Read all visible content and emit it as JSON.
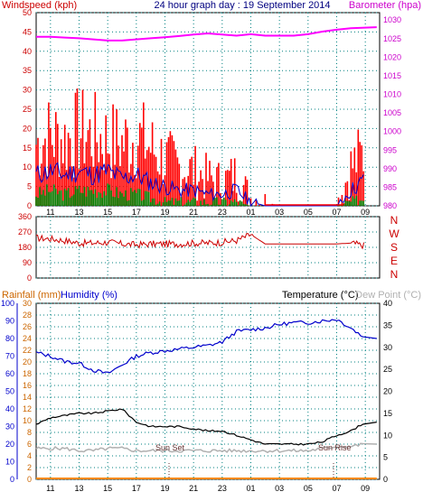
{
  "colors": {
    "wind": "#ff0000",
    "wind_avg": "#0000cc",
    "wind_low": "#008000",
    "baro": "#ff00ff",
    "direction": "#cc0000",
    "direction_labels": "#cc0000",
    "humidity": "#0000cc",
    "temperature": "#000000",
    "dewpoint": "#b0b0b0",
    "rainfall": "#ff8800",
    "grid": "#008080",
    "axis_left_top": "#cc0000",
    "axis_right_top": "#cc00cc",
    "axis_humidity": "#0000cc",
    "axis_rain": "#cc6600",
    "axis_temp": "#000000"
  },
  "header": {
    "left_title": "Windspeed (kph)",
    "center_title": "24 hour graph day : 19 September 2014",
    "right_title": "Barometer (hpa)"
  },
  "middle": {
    "direction_labels": [
      "N",
      "W",
      "S",
      "E",
      "N"
    ]
  },
  "bottom_header": {
    "rain_title": "Rainfall (mm)",
    "humidity_title": "Humidity (%)",
    "temp_title": "Temperature (°C)",
    "dew_title": "Dew Point (°C)"
  },
  "annotations": {
    "sunset": "Sun Set",
    "sunrise": "Sun Rise"
  },
  "chart_data": [
    {
      "type": "line",
      "panel": "wind_baro",
      "x_labels": [
        "11",
        "13",
        "15",
        "17",
        "19",
        "21",
        "23",
        "01",
        "03",
        "05",
        "07",
        "09"
      ],
      "y_left_ticks": [
        0,
        5,
        10,
        15,
        20,
        25,
        30,
        35,
        40,
        45,
        50
      ],
      "y_right_ticks": [
        980,
        985,
        990,
        995,
        1000,
        1005,
        1010,
        1015,
        1020,
        1025,
        1030
      ],
      "ylim_left": [
        0,
        50
      ],
      "ylim_right": [
        980,
        1032
      ],
      "hours": [
        10,
        11,
        12,
        13,
        14,
        15,
        16,
        17,
        18,
        19,
        20,
        21,
        22,
        23,
        24,
        25,
        26,
        27,
        28,
        29,
        30,
        31,
        32,
        33
      ],
      "series": [
        {
          "name": "Windspeed (kph)",
          "role": "gust",
          "values": [
            16,
            18,
            17,
            19,
            18,
            17,
            16,
            18,
            15,
            12,
            10,
            9,
            7,
            6,
            8,
            2,
            1,
            0,
            0,
            0,
            0,
            0,
            10,
            14
          ]
        },
        {
          "name": "avg",
          "role": "avg",
          "values": [
            8,
            9,
            8,
            9,
            8,
            9,
            7,
            8,
            6,
            5,
            4,
            4,
            3,
            3,
            4,
            1,
            0,
            0,
            0,
            0,
            0,
            0,
            4,
            7
          ]
        },
        {
          "name": "low",
          "role": "low",
          "values": [
            3,
            4,
            3,
            4,
            4,
            4,
            3,
            3,
            2,
            1,
            1,
            1,
            1,
            1,
            1,
            0,
            0,
            0,
            0,
            0,
            0,
            0,
            1,
            2
          ]
        },
        {
          "name": "Barometer (hpa)",
          "role": "baro",
          "values": [
            1025.5,
            1025.5,
            1025.3,
            1025.1,
            1024.8,
            1024.5,
            1024.5,
            1024.8,
            1025.1,
            1025.4,
            1025.7,
            1026.1,
            1026.4,
            1026.1,
            1025.8,
            1026.2,
            1025.8,
            1025.8,
            1025.8,
            1026.2,
            1026.9,
            1027.4,
            1027.8,
            1028.1
          ]
        }
      ]
    },
    {
      "type": "line",
      "panel": "direction",
      "y_ticks": [
        0,
        90,
        180,
        270,
        360
      ],
      "ylim": [
        0,
        360
      ],
      "hours": [
        10,
        11,
        12,
        13,
        14,
        15,
        16,
        17,
        18,
        19,
        20,
        21,
        22,
        23,
        24,
        25,
        26,
        27,
        28,
        29,
        30,
        31,
        32,
        33
      ],
      "series": [
        {
          "name": "direction",
          "values": [
            235,
            230,
            220,
            205,
            205,
            210,
            200,
            195,
            200,
            200,
            200,
            205,
            205,
            210,
            220,
            255,
            200,
            200,
            200,
            200,
            200,
            200,
            205,
            190
          ]
        }
      ]
    },
    {
      "type": "line",
      "panel": "temp_hum",
      "y_humidity_ticks": [
        0,
        10,
        20,
        30,
        40,
        50,
        60,
        70,
        80,
        90,
        100
      ],
      "y_rain_ticks": [
        0,
        2,
        4,
        6,
        8,
        10,
        12,
        14,
        16,
        18,
        20,
        22,
        24,
        26,
        28,
        30
      ],
      "y_temp_ticks": [
        0,
        5,
        10,
        15,
        20,
        25,
        30,
        35,
        40
      ],
      "ylim_humidity": [
        0,
        100
      ],
      "ylim_temp": [
        0,
        40
      ],
      "hours": [
        10,
        11,
        12,
        13,
        14,
        15,
        16,
        17,
        18,
        19,
        20,
        21,
        22,
        23,
        24,
        25,
        26,
        27,
        28,
        29,
        30,
        31,
        32,
        33
      ],
      "series": [
        {
          "name": "Humidity (%)",
          "values": [
            72,
            70,
            67,
            66,
            62,
            60,
            65,
            70,
            72,
            73,
            74,
            75,
            76,
            78,
            84,
            85,
            86,
            88,
            89,
            89,
            90,
            91,
            86,
            80
          ]
        },
        {
          "name": "Temperature (°C)",
          "values": [
            12.5,
            14,
            14.5,
            15,
            15,
            15.5,
            16,
            13,
            12,
            12,
            12,
            11.5,
            11,
            11,
            10,
            9,
            8,
            8,
            8,
            8,
            8.5,
            10,
            11,
            13
          ]
        },
        {
          "name": "Dew Point (°C)",
          "values": [
            7,
            7,
            7,
            6.5,
            6.5,
            7,
            7,
            6.5,
            6.5,
            6.5,
            6.5,
            6.5,
            6.5,
            6.5,
            6.5,
            6.5,
            6.5,
            6.5,
            6.5,
            6.5,
            7,
            7.5,
            7.5,
            8
          ]
        },
        {
          "name": "Rainfall (mm)",
          "values": [
            0,
            0,
            0,
            0,
            0,
            0,
            0,
            0,
            0,
            0,
            0,
            0,
            0,
            0,
            0,
            0,
            0,
            0,
            0,
            0,
            0,
            0,
            0,
            0
          ]
        }
      ]
    }
  ]
}
